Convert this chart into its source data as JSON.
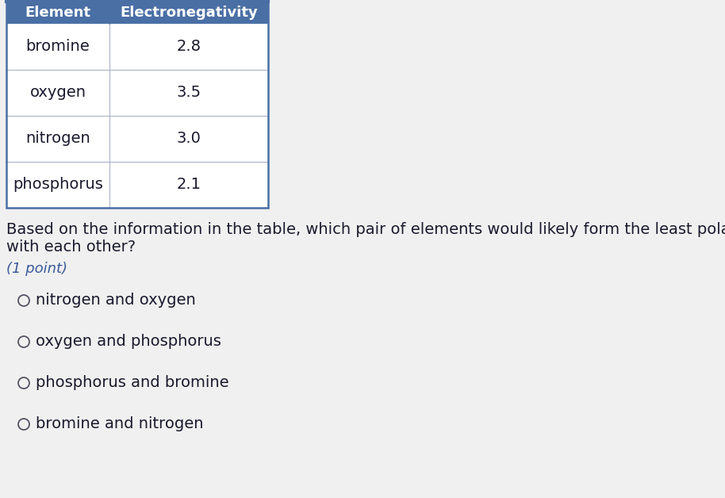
{
  "table_header": [
    "Element",
    "Electronegativity"
  ],
  "table_rows": [
    [
      "bromine",
      "2.8"
    ],
    [
      "oxygen",
      "3.5"
    ],
    [
      "nitrogen",
      "3.0"
    ],
    [
      "phosphorus",
      "2.1"
    ]
  ],
  "header_bg": "#4a6fa5",
  "header_text_color": "#ffffff",
  "row_bg": "#ffffff",
  "cell_border_color": "#aab4c8",
  "table_border_color": "#4a6fa5",
  "question_text_line1": "Based on the information in the table, which pair of elements would likely form the least polar bonds",
  "question_text_line2": "with each other?",
  "point_text": "(1 point)",
  "choices": [
    "nitrogen and oxygen",
    "oxygen and phosphorus",
    "phosphorus and bromine",
    "bromine and nitrogen"
  ],
  "bg_color": "#f0f0f0",
  "question_font_size": 14,
  "choice_font_size": 14,
  "point_font_size": 13,
  "table_font_size": 14,
  "header_font_size": 13,
  "text_color": "#1a1a2e",
  "point_color": "#3a5a9a",
  "circle_color": "#555566"
}
